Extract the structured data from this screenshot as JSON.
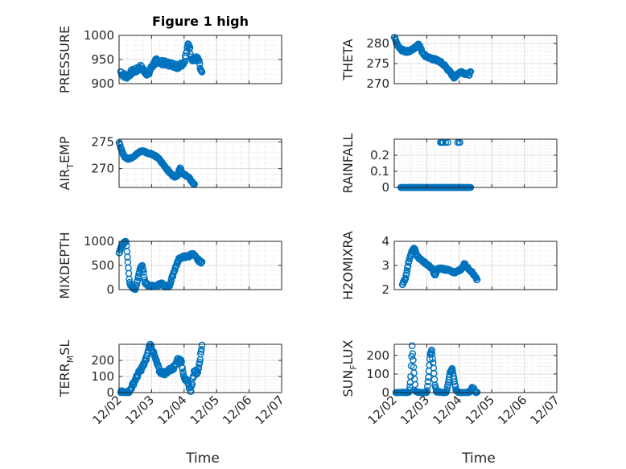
{
  "figure": {
    "xlabel_left": "Time",
    "xlabel_right": "Time"
  },
  "colors": {
    "marker": "#0072BD",
    "axes": "#262626",
    "grid": "#dcdcdc"
  },
  "chart_data": [
    {
      "type": "scatter",
      "title": "Figure 1 high",
      "ylabel": [
        "PRESSURE",
        ""
      ],
      "ylim": [
        900,
        1000
      ],
      "yticks": [
        900,
        950,
        1000
      ],
      "xlim": [
        2,
        7
      ],
      "show_xticks": false,
      "keypoints": [
        [
          2.05,
          925
        ],
        [
          2.12,
          918
        ],
        [
          2.25,
          915
        ],
        [
          2.4,
          925
        ],
        [
          2.55,
          928
        ],
        [
          2.65,
          935
        ],
        [
          2.75,
          928
        ],
        [
          2.85,
          922
        ],
        [
          2.9,
          918
        ],
        [
          3.0,
          935
        ],
        [
          3.15,
          948
        ],
        [
          3.3,
          944
        ],
        [
          3.45,
          942
        ],
        [
          3.6,
          940
        ],
        [
          3.7,
          938
        ],
        [
          3.8,
          935
        ],
        [
          3.9,
          940
        ],
        [
          4.0,
          945
        ],
        [
          4.05,
          958
        ],
        [
          4.1,
          972
        ],
        [
          4.13,
          985
        ],
        [
          4.17,
          975
        ],
        [
          4.22,
          955
        ],
        [
          4.3,
          948
        ],
        [
          4.38,
          952
        ],
        [
          4.45,
          948
        ],
        [
          4.5,
          930
        ],
        [
          4.55,
          920
        ]
      ],
      "scatter": 5
    },
    {
      "type": "scatter",
      "title": "",
      "ylabel": [
        "THETA",
        ""
      ],
      "ylim": [
        270,
        282
      ],
      "yticks": [
        270,
        275,
        280
      ],
      "xlim": [
        2,
        7
      ],
      "show_xticks": false,
      "keypoints": [
        [
          2.0,
          281.5
        ],
        [
          2.1,
          279.5
        ],
        [
          2.2,
          278.5
        ],
        [
          2.35,
          278
        ],
        [
          2.5,
          278.2
        ],
        [
          2.65,
          279
        ],
        [
          2.75,
          280
        ],
        [
          2.85,
          278
        ],
        [
          2.95,
          277
        ],
        [
          3.1,
          276.3
        ],
        [
          3.25,
          276
        ],
        [
          3.4,
          275.5
        ],
        [
          3.55,
          274.5
        ],
        [
          3.7,
          273
        ],
        [
          3.85,
          271.5
        ],
        [
          3.95,
          272.5
        ],
        [
          4.05,
          273
        ],
        [
          4.2,
          272.5
        ],
        [
          4.3,
          272.3
        ],
        [
          4.35,
          272.8
        ]
      ],
      "scatter": 0.3
    },
    {
      "type": "scatter",
      "title": "",
      "ylabel": [
        "AIR",
        "T",
        "EMP"
      ],
      "ylim": [
        266.5,
        275.5
      ],
      "yticks": [
        270,
        275
      ],
      "xlim": [
        2,
        7
      ],
      "show_xticks": false,
      "keypoints": [
        [
          2.0,
          274.8
        ],
        [
          2.08,
          273.5
        ],
        [
          2.15,
          272.3
        ],
        [
          2.3,
          271.8
        ],
        [
          2.5,
          272.5
        ],
        [
          2.65,
          273.2
        ],
        [
          2.75,
          273.3
        ],
        [
          2.85,
          273
        ],
        [
          3.0,
          272.8
        ],
        [
          3.2,
          272
        ],
        [
          3.4,
          270.5
        ],
        [
          3.55,
          269.3
        ],
        [
          3.7,
          268.5
        ],
        [
          3.8,
          268.8
        ],
        [
          3.88,
          270.3
        ],
        [
          3.95,
          269
        ],
        [
          4.05,
          268.8
        ],
        [
          4.15,
          268.3
        ],
        [
          4.25,
          267.5
        ],
        [
          4.32,
          267
        ]
      ],
      "scatter": 0.15
    },
    {
      "type": "scatter",
      "title": "",
      "ylabel": [
        "RAINFALL",
        ""
      ],
      "ylim": [
        0,
        0.3
      ],
      "yticks": [
        0,
        0.1,
        0.2
      ],
      "xlim": [
        2,
        7
      ],
      "show_xticks": false,
      "keypoints": [
        [
          2.2,
          0
        ],
        [
          4.35,
          0
        ]
      ],
      "extra": [
        [
          3.42,
          0.28
        ],
        [
          3.45,
          0.28
        ],
        [
          3.48,
          0.28
        ],
        [
          3.5,
          0.28
        ],
        [
          3.58,
          0.28
        ],
        [
          3.65,
          0.28
        ],
        [
          3.95,
          0.28
        ],
        [
          4.0,
          0.28
        ],
        [
          4.02,
          0.28
        ]
      ],
      "scatter": 0
    },
    {
      "type": "scatter",
      "title": "",
      "ylabel": [
        "MIXDEPTH",
        ""
      ],
      "ylim": [
        0,
        1000
      ],
      "yticks": [
        0,
        500,
        1000
      ],
      "xlim": [
        2,
        7
      ],
      "show_xticks": false,
      "keypoints": [
        [
          2.0,
          750
        ],
        [
          2.08,
          900
        ],
        [
          2.15,
          980
        ],
        [
          2.22,
          1000
        ],
        [
          2.28,
          480
        ],
        [
          2.32,
          150
        ],
        [
          2.38,
          60
        ],
        [
          2.45,
          30
        ],
        [
          2.5,
          0
        ],
        [
          2.55,
          120
        ],
        [
          2.6,
          300
        ],
        [
          2.65,
          450
        ],
        [
          2.72,
          480
        ],
        [
          2.8,
          150
        ],
        [
          2.9,
          80
        ],
        [
          3.0,
          80
        ],
        [
          3.15,
          80
        ],
        [
          3.3,
          120
        ],
        [
          3.45,
          60
        ],
        [
          3.55,
          80
        ],
        [
          3.7,
          400
        ],
        [
          3.85,
          650
        ],
        [
          4.0,
          680
        ],
        [
          4.15,
          690
        ],
        [
          4.25,
          750
        ],
        [
          4.32,
          700
        ],
        [
          4.42,
          620
        ],
        [
          4.5,
          580
        ],
        [
          4.55,
          560
        ]
      ],
      "scatter": 25
    },
    {
      "type": "scatter",
      "title": "",
      "ylabel": [
        "H2OMIXRA",
        ""
      ],
      "ylim": [
        2,
        4
      ],
      "yticks": [
        2,
        3,
        4
      ],
      "xlim": [
        2,
        7
      ],
      "show_xticks": false,
      "keypoints": [
        [
          2.25,
          2.2
        ],
        [
          2.35,
          2.5
        ],
        [
          2.45,
          3.2
        ],
        [
          2.55,
          3.6
        ],
        [
          2.62,
          3.7
        ],
        [
          2.7,
          3.4
        ],
        [
          2.85,
          3.2
        ],
        [
          3.0,
          3.05
        ],
        [
          3.15,
          2.9
        ],
        [
          3.25,
          2.6
        ],
        [
          3.35,
          2.9
        ],
        [
          3.5,
          2.85
        ],
        [
          3.7,
          2.8
        ],
        [
          3.85,
          2.7
        ],
        [
          4.0,
          2.8
        ],
        [
          4.1,
          2.9
        ],
        [
          4.15,
          3.1
        ],
        [
          4.25,
          2.9
        ],
        [
          4.35,
          2.8
        ],
        [
          4.45,
          2.6
        ],
        [
          4.55,
          2.4
        ]
      ],
      "scatter": 0.04
    },
    {
      "type": "scatter",
      "title": "",
      "ylabel": [
        "TERR",
        "M",
        "SL"
      ],
      "ylim": [
        0,
        300
      ],
      "yticks": [
        0,
        100,
        200
      ],
      "xlim": [
        2,
        7
      ],
      "show_xticks": true,
      "xticks": [
        2,
        3,
        4,
        5,
        6,
        7
      ],
      "xticklabels": [
        "12/02",
        "12/03",
        "12/04",
        "12/05",
        "12/06",
        "12/07"
      ],
      "keypoints": [
        [
          2.05,
          0
        ],
        [
          2.3,
          0
        ],
        [
          2.4,
          40
        ],
        [
          2.6,
          120
        ],
        [
          2.75,
          170
        ],
        [
          2.85,
          220
        ],
        [
          2.92,
          280
        ],
        [
          2.97,
          300
        ],
        [
          3.1,
          220
        ],
        [
          3.25,
          130
        ],
        [
          3.4,
          120
        ],
        [
          3.55,
          140
        ],
        [
          3.7,
          160
        ],
        [
          3.8,
          210
        ],
        [
          3.9,
          200
        ],
        [
          4.0,
          100
        ],
        [
          4.1,
          60
        ],
        [
          4.15,
          40
        ],
        [
          4.2,
          10
        ],
        [
          4.25,
          60
        ],
        [
          4.32,
          140
        ],
        [
          4.4,
          120
        ],
        [
          4.45,
          160
        ],
        [
          4.5,
          220
        ],
        [
          4.55,
          290
        ]
      ],
      "scatter": 12
    },
    {
      "type": "scatter",
      "title": "",
      "ylabel": [
        "SUN",
        "F",
        "LUX"
      ],
      "ylim": [
        0,
        260
      ],
      "yticks": [
        0,
        100,
        200
      ],
      "xlim": [
        2,
        7
      ],
      "show_xticks": true,
      "xticks": [
        2,
        3,
        4,
        5,
        6,
        7
      ],
      "xticklabels": [
        "12/02",
        "12/03",
        "12/04",
        "12/05",
        "12/06",
        "12/07"
      ],
      "keypoints": [
        [
          2.05,
          0
        ],
        [
          2.45,
          0
        ],
        [
          2.5,
          60
        ],
        [
          2.55,
          250
        ],
        [
          2.6,
          120
        ],
        [
          2.65,
          10
        ],
        [
          2.75,
          0
        ],
        [
          3.0,
          0
        ],
        [
          3.05,
          80
        ],
        [
          3.1,
          200
        ],
        [
          3.15,
          230
        ],
        [
          3.2,
          150
        ],
        [
          3.25,
          40
        ],
        [
          3.3,
          5
        ],
        [
          3.5,
          0
        ],
        [
          3.6,
          0
        ],
        [
          3.65,
          40
        ],
        [
          3.72,
          110
        ],
        [
          3.78,
          130
        ],
        [
          3.85,
          60
        ],
        [
          3.9,
          10
        ],
        [
          4.0,
          0
        ],
        [
          4.3,
          0
        ],
        [
          4.35,
          10
        ],
        [
          4.4,
          30
        ],
        [
          4.45,
          20
        ],
        [
          4.5,
          0
        ],
        [
          4.55,
          0
        ]
      ],
      "scatter": 3
    }
  ]
}
